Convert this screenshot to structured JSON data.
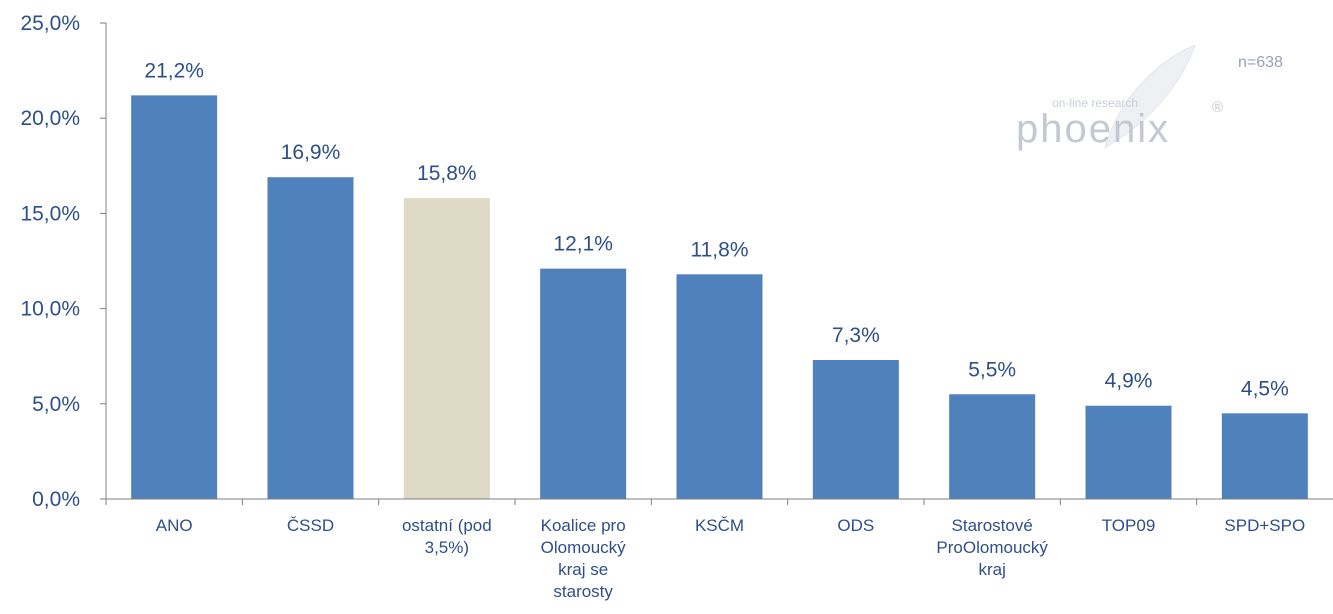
{
  "chart_data": {
    "type": "bar",
    "categories": [
      [
        "ANO"
      ],
      [
        "ČSSD"
      ],
      [
        "ostatní (pod",
        "3,5%)"
      ],
      [
        "Koalice pro",
        "Olomoucký",
        "kraj se",
        "starosty"
      ],
      [
        "KSČM"
      ],
      [
        "ODS"
      ],
      [
        "Starostové",
        "ProOlomoucký",
        "kraj"
      ],
      [
        "TOP09"
      ],
      [
        "SPD+SPO"
      ]
    ],
    "values": [
      21.2,
      16.9,
      15.8,
      12.1,
      11.8,
      7.3,
      5.5,
      4.9,
      4.5
    ],
    "value_labels": [
      "21,2%",
      "16,9%",
      "15,8%",
      "12,1%",
      "11,8%",
      "7,3%",
      "5,5%",
      "4,9%",
      "4,5%"
    ],
    "bar_colors": [
      "#4f81bd",
      "#4f81bd",
      "#ddd9c4",
      "#4f81bd",
      "#4f81bd",
      "#4f81bd",
      "#4f81bd",
      "#4f81bd",
      "#4f81bd"
    ],
    "ylim": [
      0,
      25
    ],
    "yticks": [
      0,
      5,
      10,
      15,
      20,
      25
    ],
    "ytick_labels": [
      "0,0%",
      "5,0%",
      "10,0%",
      "15,0%",
      "20,0%",
      "25,0%"
    ],
    "grid": false,
    "label_color": "#2e4f8c",
    "axis_color": "#7f7f7f"
  },
  "annotations": {
    "sample_size": "n=638"
  },
  "watermark": {
    "tagline": "on-line research",
    "brand": "phoenix",
    "registered": "®"
  }
}
